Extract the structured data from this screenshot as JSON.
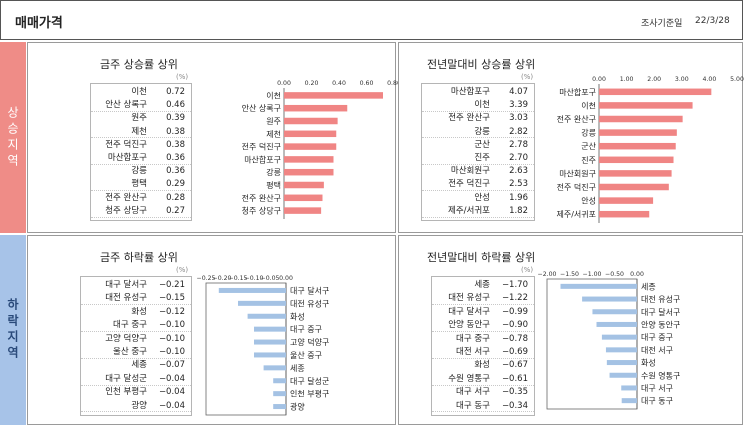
{
  "header": {
    "title": "매매가격",
    "survey_label": "조사기준일",
    "survey_date": "22/3/28"
  },
  "sections": {
    "rise_label": "상승지역",
    "fall_label": "하락지역"
  },
  "colors": {
    "rise_bar": "#f08584",
    "fall_bar": "#a4c2e4",
    "rise_section": "#ef8c87",
    "fall_section": "#a7c3e8"
  },
  "unit": "(%)",
  "chart_data": [
    {
      "id": "weekly-rise",
      "type": "bar",
      "title": "금주 상승률 상위",
      "categories": [
        "이천",
        "안산 상록구",
        "원주",
        "제천",
        "전주 덕진구",
        "마산합포구",
        "강릉",
        "평택",
        "전주 완산구",
        "청주 상당구"
      ],
      "values": [
        0.72,
        0.46,
        0.39,
        0.38,
        0.38,
        0.36,
        0.36,
        0.29,
        0.28,
        0.27
      ],
      "value_labels": [
        "0.72",
        "0.46",
        "0.39",
        "0.38",
        "0.38",
        "0.36",
        "0.36",
        "0.29",
        "0.28",
        "0.27"
      ],
      "xlim": [
        0,
        0.8
      ],
      "ticks": [
        "0.00",
        "0.20",
        "0.40",
        "0.60",
        "0.80"
      ]
    },
    {
      "id": "ytd-rise",
      "type": "bar",
      "title": "전년말대비 상승률 상위",
      "categories": [
        "마산합포구",
        "이천",
        "전주 완산구",
        "강릉",
        "군산",
        "진주",
        "마산회원구",
        "전주 덕진구",
        "안성",
        "제주/서귀포"
      ],
      "values": [
        4.07,
        3.39,
        3.03,
        2.82,
        2.78,
        2.7,
        2.63,
        2.53,
        1.96,
        1.82
      ],
      "value_labels": [
        "4.07",
        "3.39",
        "3.03",
        "2.82",
        "2.78",
        "2.70",
        "2.63",
        "2.53",
        "1.96",
        "1.82"
      ],
      "xlim": [
        0,
        5
      ],
      "ticks": [
        "0.00",
        "1.00",
        "2.00",
        "3.00",
        "4.00",
        "5.00"
      ]
    },
    {
      "id": "weekly-fall",
      "type": "bar",
      "title": "금주 하락률 상위",
      "categories": [
        "대구 달서구",
        "대전 유성구",
        "화성",
        "대구 중구",
        "고양 덕양구",
        "울산 중구",
        "세종",
        "대구 달성군",
        "인천 부평구",
        "광양"
      ],
      "values": [
        -0.21,
        -0.15,
        -0.12,
        -0.1,
        -0.1,
        -0.1,
        -0.07,
        -0.04,
        -0.04,
        -0.04
      ],
      "value_labels": [
        "−0.21",
        "−0.15",
        "−0.12",
        "−0.10",
        "−0.10",
        "−0.10",
        "−0.07",
        "−0.04",
        "−0.04",
        "−0.04"
      ],
      "xlim": [
        -0.25,
        0
      ],
      "ticks": [
        "−0.25",
        "−0.20",
        "−0.15",
        "−0.10",
        "−0.05",
        "0.00"
      ]
    },
    {
      "id": "ytd-fall",
      "type": "bar",
      "title": "전년말대비 하락률 상위",
      "categories": [
        "세종",
        "대전 유성구",
        "대구 달서구",
        "안양 동안구",
        "대구 중구",
        "대전 서구",
        "화성",
        "수원 영통구",
        "대구 서구",
        "대구 동구"
      ],
      "values": [
        -1.7,
        -1.22,
        -0.99,
        -0.9,
        -0.78,
        -0.69,
        -0.67,
        -0.61,
        -0.35,
        -0.34
      ],
      "value_labels": [
        "−1.70",
        "−1.22",
        "−0.99",
        "−0.90",
        "−0.78",
        "−0.69",
        "−0.67",
        "−0.61",
        "−0.35",
        "−0.34"
      ],
      "xlim": [
        -2,
        0
      ],
      "ticks": [
        "−2.00",
        "−1.50",
        "−1.00",
        "−0.50",
        "0.00"
      ]
    }
  ]
}
